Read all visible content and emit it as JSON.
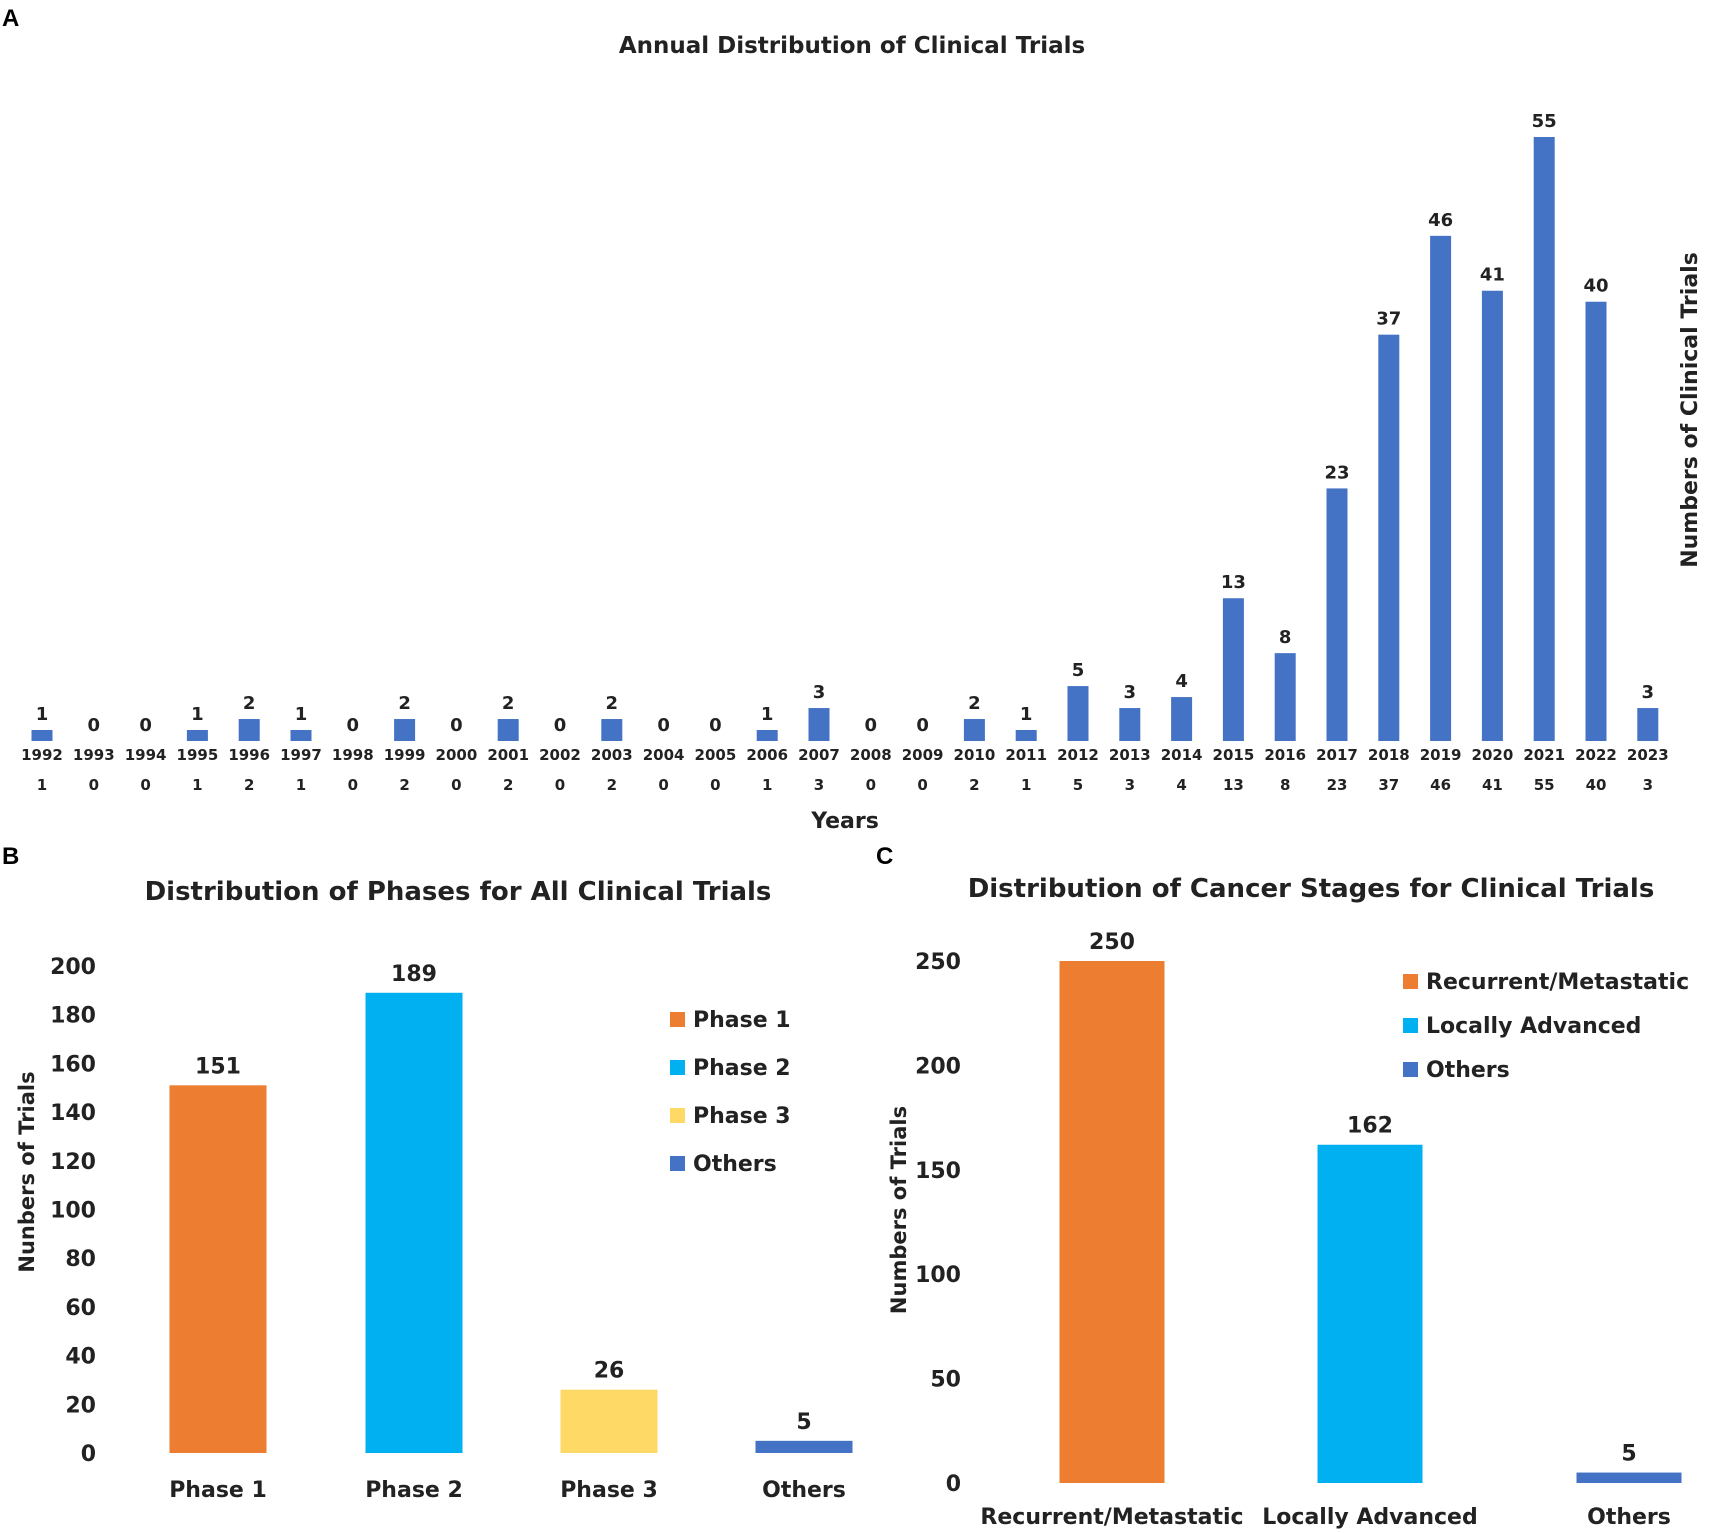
{
  "panels": {
    "a": "A",
    "b": "B",
    "c": "C"
  },
  "colors": {
    "blue": "#4472C4",
    "orange": "#ED7D31",
    "cyan": "#00B0F0",
    "yellow": "#FFD966"
  },
  "chart_data": [
    {
      "type": "bar",
      "title": "Annual Distribution of Clinical Trials",
      "xlabel": "Years",
      "ylabel": "Numbers of Clinical Trials",
      "categories": [
        "1992",
        "1993",
        "1994",
        "1995",
        "1996",
        "1997",
        "1998",
        "1999",
        "2000",
        "2001",
        "2002",
        "2003",
        "2004",
        "2005",
        "2006",
        "2007",
        "2008",
        "2009",
        "2010",
        "2011",
        "2012",
        "2013",
        "2014",
        "2015",
        "2016",
        "2017",
        "2018",
        "2019",
        "2020",
        "2021",
        "2022",
        "2023"
      ],
      "values": [
        1,
        0,
        0,
        1,
        2,
        1,
        0,
        2,
        0,
        2,
        0,
        2,
        0,
        0,
        1,
        3,
        0,
        0,
        2,
        1,
        5,
        3,
        4,
        13,
        8,
        23,
        37,
        46,
        41,
        55,
        40,
        3
      ],
      "ylim": [
        0,
        60
      ],
      "color": "#4472C4",
      "table_row": true
    },
    {
      "type": "bar",
      "title": "Distribution of Phases for All Clinical Trials",
      "xlabel": "",
      "ylabel": "Nunbers of Trials",
      "categories": [
        "Phase 1",
        "Phase 2",
        "Phase 3",
        "Others"
      ],
      "values": [
        151,
        189,
        26,
        5
      ],
      "colors": [
        "#ED7D31",
        "#00B0F0",
        "#FFD966",
        "#4472C4"
      ],
      "yticks": [
        0,
        20,
        40,
        60,
        80,
        100,
        120,
        140,
        160,
        180,
        200
      ],
      "ylim": [
        0,
        200
      ],
      "legend": [
        "Phase 1",
        "Phase 2",
        "Phase 3",
        "Others"
      ],
      "legend_position": "top-right"
    },
    {
      "type": "bar",
      "title": "Distribution of Cancer Stages for Clinical Trials",
      "xlabel": "",
      "ylabel": "Numbers of Trials",
      "categories": [
        "Recurrent/Metastatic",
        "Locally Advanced",
        "Others"
      ],
      "values": [
        250,
        162,
        5
      ],
      "colors": [
        "#ED7D31",
        "#00B0F0",
        "#4472C4"
      ],
      "yticks": [
        0,
        50,
        100,
        150,
        200,
        250
      ],
      "ylim": [
        0,
        250
      ],
      "legend": [
        "Recurrent/Metastatic",
        "Locally Advanced",
        "Others"
      ],
      "legend_position": "top-right"
    }
  ]
}
